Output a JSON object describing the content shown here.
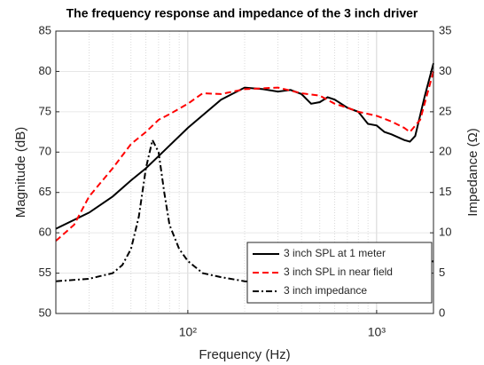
{
  "chart_data": {
    "type": "line",
    "title": "The frequency response and impedance of the 3 inch driver",
    "xlabel": "Frequency (Hz)",
    "ylabel": "Magnitude (dB)",
    "y2label": "Impedance (Ω)",
    "xscale": "log",
    "xlim": [
      20,
      2000
    ],
    "xticks": [
      {
        "value": 100,
        "label": "10²"
      },
      {
        "value": 1000,
        "label": "10³"
      }
    ],
    "xminor": [
      20,
      30,
      40,
      50,
      60,
      70,
      80,
      90,
      200,
      300,
      400,
      500,
      600,
      700,
      800,
      900,
      2000
    ],
    "ylim": [
      50,
      85
    ],
    "yticks": [
      50,
      55,
      60,
      65,
      70,
      75,
      80,
      85
    ],
    "y2lim": [
      0,
      35
    ],
    "y2ticks": [
      0,
      5,
      10,
      15,
      20,
      25,
      30,
      35
    ],
    "grid": true,
    "legend": "lower right",
    "series": [
      {
        "name": "3 inch SPL at 1 meter",
        "color": "#000000",
        "dash": "solid",
        "x": [
          20,
          30,
          40,
          50,
          60,
          70,
          100,
          150,
          200,
          250,
          300,
          350,
          400,
          450,
          500,
          550,
          600,
          700,
          800,
          900,
          1000,
          1100,
          1200,
          1400,
          1500,
          1600,
          1800,
          2000
        ],
        "values": [
          60.5,
          62.5,
          64.5,
          66.5,
          68,
          69.5,
          73,
          76.5,
          78,
          77.8,
          77.5,
          77.7,
          77.2,
          76,
          76.2,
          76.8,
          76.5,
          75.5,
          75,
          73.5,
          73.3,
          72.5,
          72.2,
          71.5,
          71.3,
          72,
          77,
          81
        ]
      },
      {
        "name": "3 inch SPL in near field",
        "color": "#ff0000",
        "dash": "dashed",
        "x": [
          20,
          25,
          30,
          40,
          50,
          60,
          70,
          80,
          100,
          120,
          150,
          200,
          300,
          400,
          500,
          600,
          700,
          800,
          1000,
          1200,
          1400,
          1500,
          1700,
          2000
        ],
        "values": [
          59,
          61,
          64.5,
          68,
          71,
          72.5,
          74,
          74.7,
          76,
          77.3,
          77.2,
          77.8,
          78,
          77.3,
          77,
          76,
          75.5,
          75,
          74.5,
          73.8,
          73,
          72.5,
          74,
          80
        ]
      },
      {
        "name": "3 inch impedance",
        "color": "#000000",
        "dash": "dashdot",
        "axis": "y2",
        "x": [
          20,
          30,
          40,
          45,
          50,
          55,
          60,
          65,
          70,
          75,
          80,
          90,
          100,
          120,
          150,
          200,
          300,
          500,
          1000,
          1500,
          2000
        ],
        "values": [
          4,
          4.3,
          5,
          6,
          8,
          12,
          18,
          21.5,
          20,
          15,
          11,
          8,
          6.5,
          5,
          4.5,
          4,
          3.8,
          3.8,
          4,
          4.8,
          6.5
        ]
      }
    ]
  }
}
